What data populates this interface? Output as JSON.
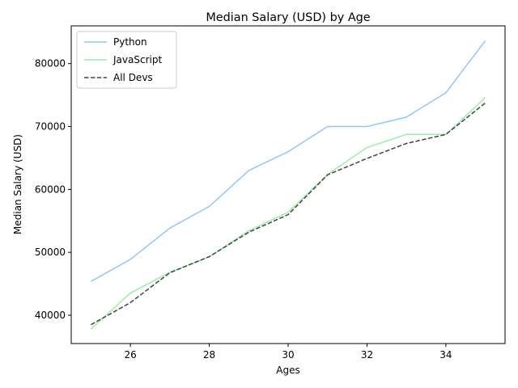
{
  "chart_data": {
    "type": "line",
    "title": "Median Salary (USD) by Age",
    "xlabel": "Ages",
    "ylabel": "Median Salary (USD)",
    "x": [
      25,
      26,
      27,
      28,
      29,
      30,
      31,
      32,
      33,
      34,
      35
    ],
    "xlim": [
      24.5,
      35.5
    ],
    "ylim": [
      35500,
      86000
    ],
    "xticks": [
      26,
      28,
      30,
      32,
      34
    ],
    "yticks": [
      40000,
      50000,
      60000,
      70000,
      80000
    ],
    "grid": false,
    "legend_position": "top-left",
    "series": [
      {
        "name": "Python",
        "color": "#92c6ff",
        "dash": "solid",
        "values": [
          45372,
          48876,
          53850,
          57287,
          63016,
          65998,
          70003,
          70000,
          71496,
          75370,
          83640
        ]
      },
      {
        "name": "JavaScript",
        "color": "#97f0aa",
        "dash": "solid",
        "values": [
          37810,
          43515,
          46823,
          49293,
          53437,
          56373,
          62375,
          66674,
          68745,
          68746,
          74583
        ]
      },
      {
        "name": "All Devs",
        "color": "#444444",
        "dash": "dashed",
        "values": [
          38496,
          42000,
          46752,
          49320,
          53200,
          56000,
          62316,
          64928,
          67317,
          68748,
          73752
        ]
      }
    ]
  }
}
